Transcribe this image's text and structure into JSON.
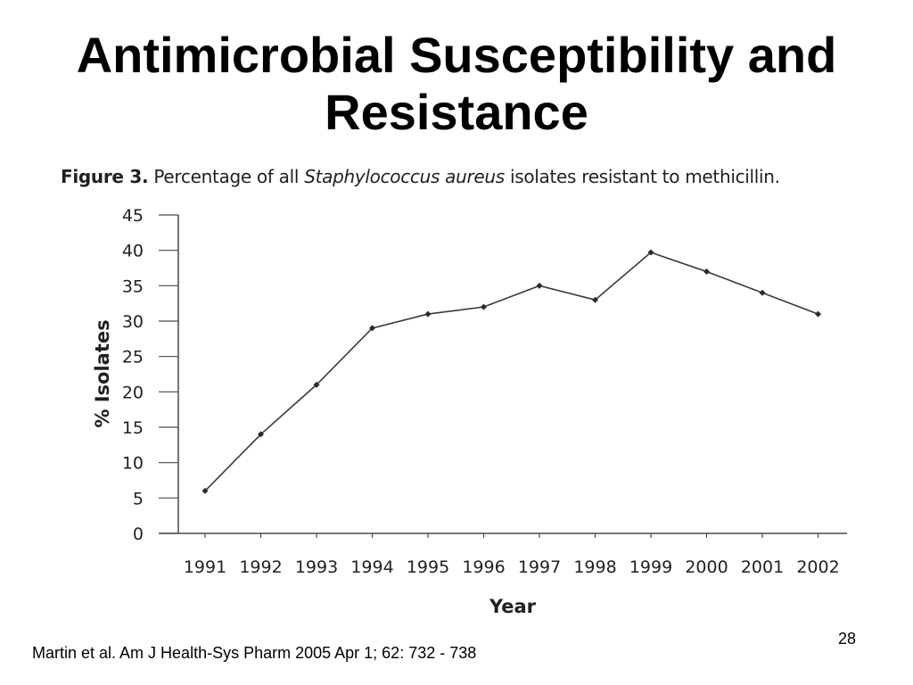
{
  "slide": {
    "title_line1": "Antimicrobial Susceptibility and",
    "title_line2": "Resistance",
    "citation": "Martin et al.  Am J Health-Sys Pharm 2005 Apr 1; 62: 732 - 738",
    "page_number": "28"
  },
  "figure": {
    "label": "Figure 3.",
    "caption_before": "Percentage of all ",
    "caption_italic": "Staphylococcus aureus",
    "caption_after": " isolates resistant to methicillin."
  },
  "chart_data": {
    "type": "line",
    "x": [
      "1991",
      "1992",
      "1993",
      "1994",
      "1995",
      "1996",
      "1997",
      "1998",
      "1999",
      "2000",
      "2001",
      "2002"
    ],
    "series": [
      {
        "values": [
          6,
          14,
          21,
          29,
          31,
          32,
          35,
          33,
          39.7,
          37,
          34,
          31
        ]
      }
    ],
    "xlabel": "Year",
    "ylabel": "% Isolates",
    "ylim": [
      0,
      45
    ],
    "yticks": [
      0,
      5,
      10,
      15,
      20,
      25,
      30,
      35,
      40,
      45
    ],
    "grid": false,
    "line_color": "#3a3a3a"
  }
}
